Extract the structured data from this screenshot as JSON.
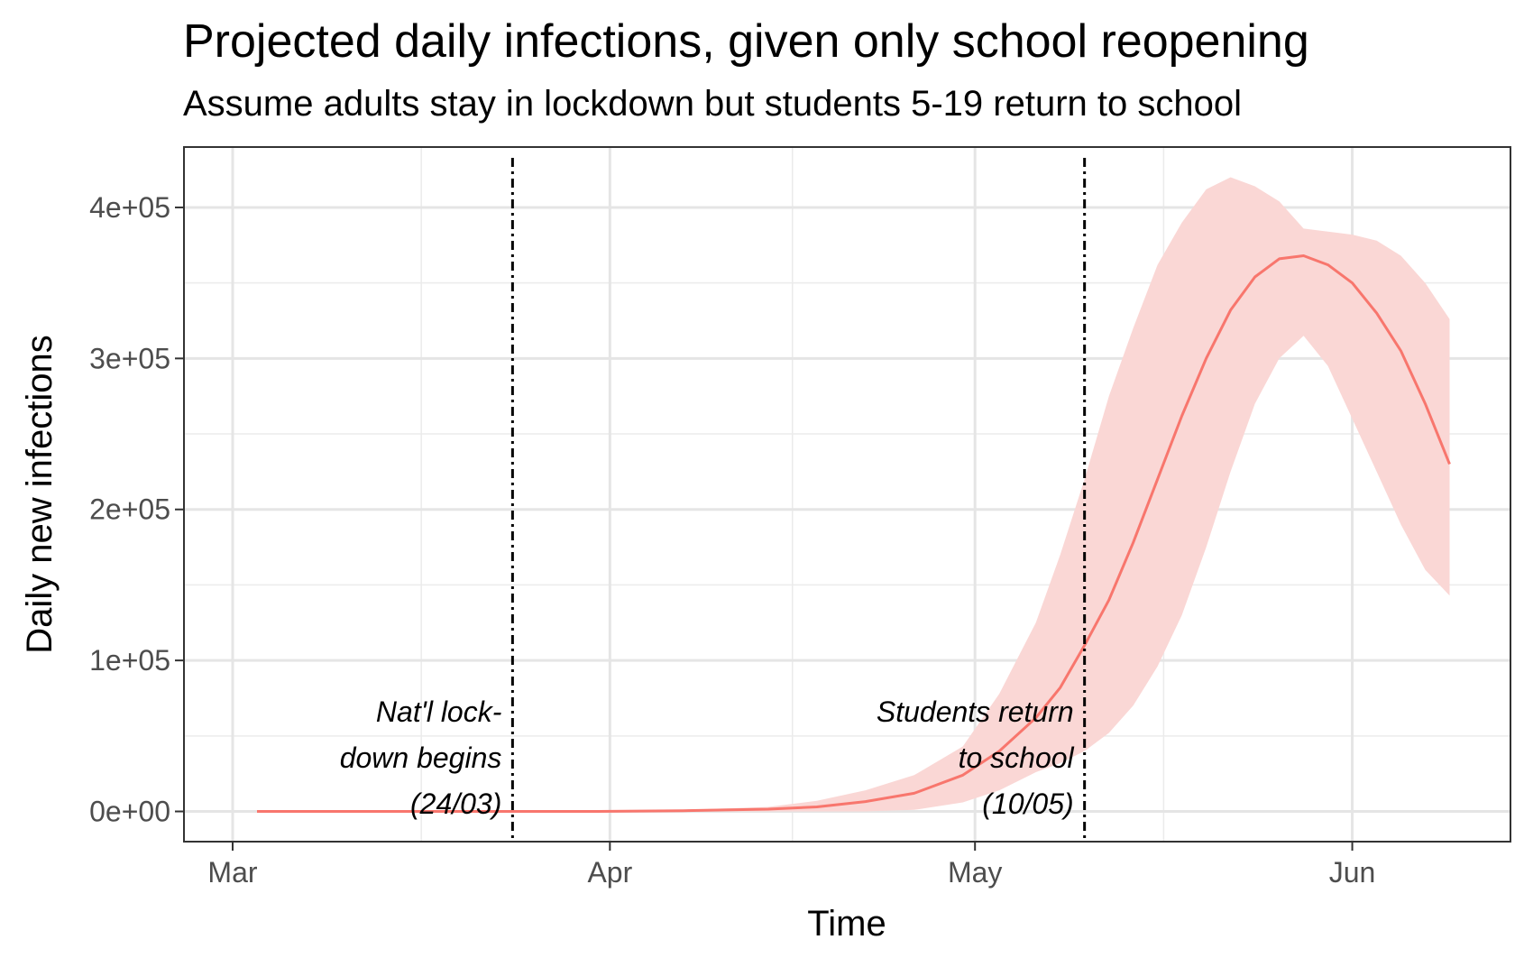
{
  "chart_data": {
    "type": "area",
    "title": "Projected daily infections, given only school reopening",
    "subtitle": "Assume adults stay in lockdown but students 5-19 return to school",
    "xlabel": "Time",
    "ylabel": "Daily new infections",
    "x_ticks": [
      {
        "date": "2020-03-01",
        "label": "Mar"
      },
      {
        "date": "2020-04-01",
        "label": "Apr"
      },
      {
        "date": "2020-05-01",
        "label": "May"
      },
      {
        "date": "2020-06-01",
        "label": "Jun"
      }
    ],
    "y_ticks": [
      {
        "value": 0,
        "label": "0e+00"
      },
      {
        "value": 100000,
        "label": "1e+05"
      },
      {
        "value": 200000,
        "label": "2e+05"
      },
      {
        "value": 300000,
        "label": "3e+05"
      },
      {
        "value": 400000,
        "label": "4e+05"
      }
    ],
    "xlim": [
      "2020-02-26",
      "2020-06-14"
    ],
    "ylim": [
      -20000,
      440000
    ],
    "grid": true,
    "colors": {
      "line": "#f8766d",
      "band": "#fad7d5",
      "vline": "#000000"
    },
    "series": [
      {
        "x": [
          "2020-03-03",
          "2020-03-10",
          "2020-03-17",
          "2020-03-24",
          "2020-03-31",
          "2020-04-07",
          "2020-04-14",
          "2020-04-18",
          "2020-04-22",
          "2020-04-26",
          "2020-04-30",
          "2020-05-03",
          "2020-05-06",
          "2020-05-08",
          "2020-05-10",
          "2020-05-12",
          "2020-05-14",
          "2020-05-16",
          "2020-05-18",
          "2020-05-20",
          "2020-05-22",
          "2020-05-24",
          "2020-05-26",
          "2020-05-28",
          "2020-05-30",
          "2020-06-01",
          "2020-06-03",
          "2020-06-05",
          "2020-06-07",
          "2020-06-09"
        ],
        "y": [
          0,
          0,
          0,
          0,
          0,
          500,
          1500,
          3000,
          6500,
          12000,
          24000,
          40000,
          62000,
          82000,
          110000,
          140000,
          178000,
          220000,
          262000,
          300000,
          332000,
          354000,
          366000,
          368000,
          362000,
          350000,
          330000,
          305000,
          270000,
          230000
        ],
        "lower": [
          0,
          0,
          0,
          0,
          0,
          0,
          0,
          0,
          0,
          1000,
          6000,
          14000,
          26000,
          32000,
          40000,
          52000,
          70000,
          96000,
          130000,
          175000,
          225000,
          270000,
          300000,
          315000,
          295000,
          260000,
          225000,
          190000,
          160000,
          143000
        ],
        "upper": [
          0,
          0,
          0,
          0,
          0,
          1000,
          3000,
          7000,
          14000,
          24000,
          43000,
          78000,
          125000,
          170000,
          220000,
          275000,
          320000,
          362000,
          390000,
          412000,
          420000,
          414000,
          404000,
          386000,
          384000,
          382000,
          378000,
          368000,
          350000,
          326000
        ]
      }
    ],
    "annotations": [
      {
        "date": "2020-03-24",
        "lines": [
          "Nat'l lock-",
          "down begins",
          "(24/03)"
        ]
      },
      {
        "date": "2020-05-10",
        "lines": [
          "Students return",
          "to school",
          "(10/05)"
        ]
      }
    ]
  }
}
